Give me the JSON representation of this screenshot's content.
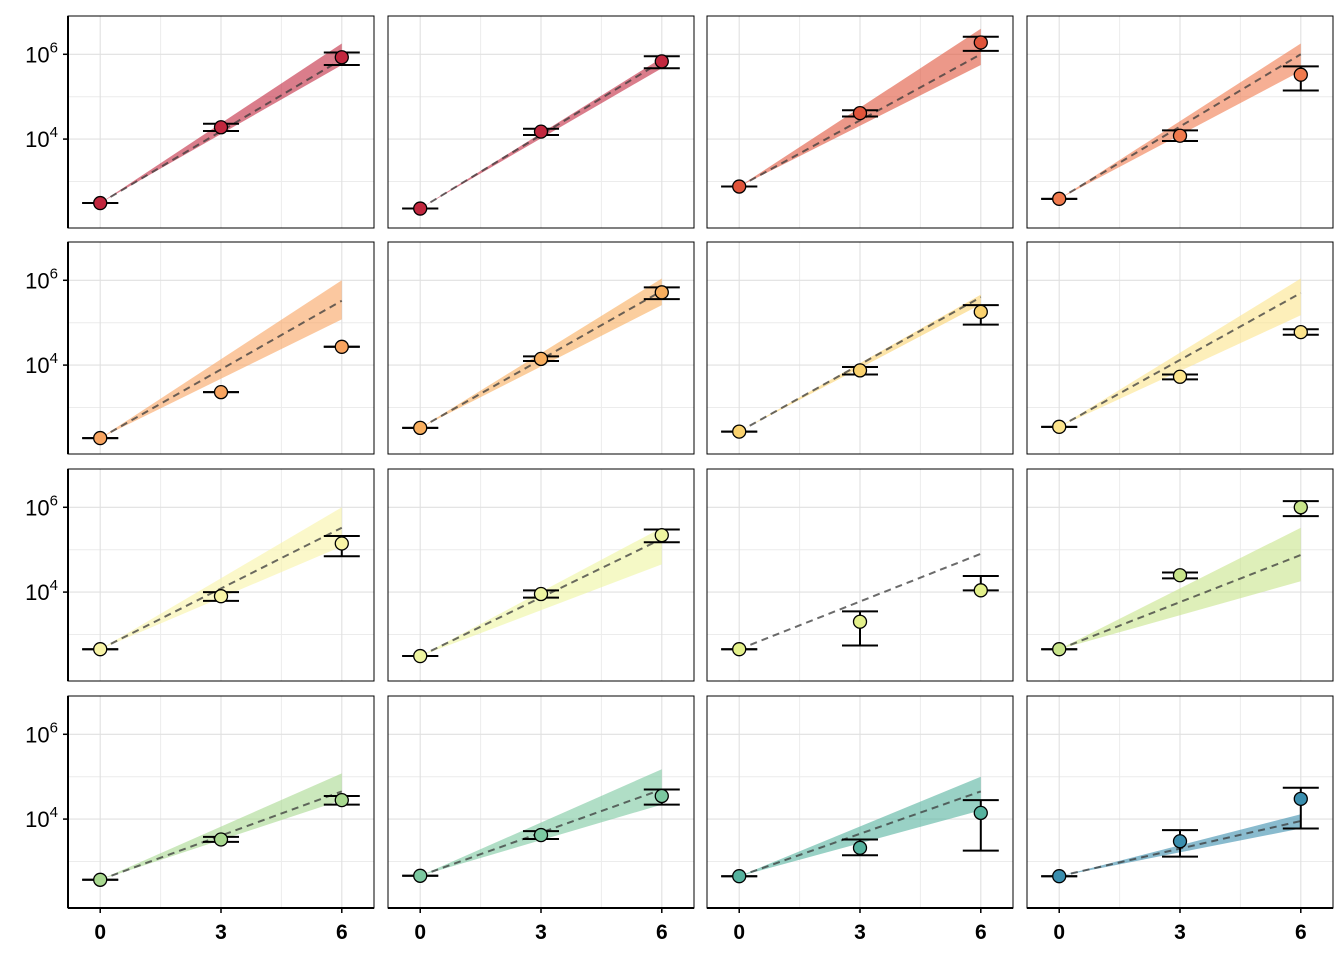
{
  "chart_data": {
    "type": "scatter",
    "title": "",
    "xlabel": "",
    "ylabel": "",
    "layout": {
      "rows": 4,
      "cols": 4
    },
    "x_ticks": [
      0,
      3,
      6
    ],
    "x_tick_labels": [
      "0",
      "3",
      "6"
    ],
    "xlim": [
      -0.8,
      6.8
    ],
    "y_scale": "log10",
    "ylim": [
      80,
      8000000
    ],
    "y_ticks": [
      10000,
      1000000
    ],
    "y_tick_labels": [
      {
        "base": "10",
        "exp": "4"
      },
      {
        "base": "10",
        "exp": "6"
      }
    ],
    "y_minor_gridlines": [
      1000,
      100000
    ],
    "fit_line_style": "dashed",
    "panels": [
      {
        "color": "#C1273E",
        "points": [
          {
            "x": 0,
            "y": 310,
            "lo": 310,
            "hi": 310
          },
          {
            "x": 3,
            "y": 19000,
            "lo": 15500,
            "hi": 23000
          },
          {
            "x": 6,
            "y": 850000,
            "lo": 560000,
            "hi": 1100000
          }
        ],
        "fit": {
          "y0": 310,
          "y6": 760000,
          "band_lo6": 560000,
          "band_hi6": 1800000
        }
      },
      {
        "color": "#C1273E",
        "points": [
          {
            "x": 0,
            "y": 230,
            "lo": 230,
            "hi": 230
          },
          {
            "x": 3,
            "y": 15000,
            "lo": 12500,
            "hi": 17500
          },
          {
            "x": 6,
            "y": 680000,
            "lo": 470000,
            "hi": 900000
          }
        ],
        "fit": {
          "y0": 230,
          "y6": 680000,
          "band_lo6": 470000,
          "band_hi6": 820000
        }
      },
      {
        "color": "#E0543A",
        "points": [
          {
            "x": 0,
            "y": 760,
            "lo": 760,
            "hi": 760
          },
          {
            "x": 3,
            "y": 41000,
            "lo": 34000,
            "hi": 48000
          },
          {
            "x": 6,
            "y": 1900000,
            "lo": 1200000,
            "hi": 2600000
          }
        ],
        "fit": {
          "y0": 760,
          "y6": 1000000,
          "band_lo6": 560000,
          "band_hi6": 4000000
        }
      },
      {
        "color": "#F07A4D",
        "points": [
          {
            "x": 0,
            "y": 390,
            "lo": 390,
            "hi": 390
          },
          {
            "x": 3,
            "y": 12000,
            "lo": 9000,
            "hi": 16000
          },
          {
            "x": 6,
            "y": 330000,
            "lo": 140000,
            "hi": 520000
          }
        ],
        "fit": {
          "y0": 390,
          "y6": 1000000,
          "band_lo6": 400000,
          "band_hi6": 1800000
        }
      },
      {
        "color": "#F8A460",
        "points": [
          {
            "x": 0,
            "y": 190,
            "lo": 190,
            "hi": 190
          },
          {
            "x": 3,
            "y": 2300,
            "lo": 2300,
            "hi": 2300
          },
          {
            "x": 6,
            "y": 27000,
            "lo": 27000,
            "hi": 27000
          }
        ],
        "fit": {
          "y0": 190,
          "y6": 330000,
          "band_lo6": 120000,
          "band_hi6": 1000000
        }
      },
      {
        "color": "#F8AE5E",
        "points": [
          {
            "x": 0,
            "y": 330,
            "lo": 330,
            "hi": 330
          },
          {
            "x": 3,
            "y": 14000,
            "lo": 12500,
            "hi": 16000
          },
          {
            "x": 6,
            "y": 520000,
            "lo": 360000,
            "hi": 680000
          }
        ],
        "fit": {
          "y0": 330,
          "y6": 560000,
          "band_lo6": 260000,
          "band_hi6": 1100000
        }
      },
      {
        "color": "#FAD26E",
        "points": [
          {
            "x": 0,
            "y": 270,
            "lo": 270,
            "hi": 270
          },
          {
            "x": 3,
            "y": 7500,
            "lo": 6000,
            "hi": 9000
          },
          {
            "x": 6,
            "y": 180000,
            "lo": 90000,
            "hi": 260000
          }
        ],
        "fit": {
          "y0": 270,
          "y6": 400000,
          "band_lo6": 270000,
          "band_hi6": 460000
        }
      },
      {
        "color": "#FCE48C",
        "points": [
          {
            "x": 0,
            "y": 350,
            "lo": 350,
            "hi": 350
          },
          {
            "x": 3,
            "y": 5300,
            "lo": 4600,
            "hi": 6000
          },
          {
            "x": 6,
            "y": 60000,
            "lo": 52000,
            "hi": 70000
          }
        ],
        "fit": {
          "y0": 350,
          "y6": 500000,
          "band_lo6": 150000,
          "band_hi6": 1100000
        }
      },
      {
        "color": "#F8F4A6",
        "points": [
          {
            "x": 0,
            "y": 450,
            "lo": 450,
            "hi": 450
          },
          {
            "x": 3,
            "y": 8000,
            "lo": 6200,
            "hi": 10000
          },
          {
            "x": 6,
            "y": 140000,
            "lo": 70000,
            "hi": 210000
          }
        ],
        "fit": {
          "y0": 450,
          "y6": 330000,
          "band_lo6": 120000,
          "band_hi6": 1000000
        }
      },
      {
        "color": "#EEF5A0",
        "points": [
          {
            "x": 0,
            "y": 310,
            "lo": 310,
            "hi": 310
          },
          {
            "x": 3,
            "y": 9000,
            "lo": 7400,
            "hi": 11000
          },
          {
            "x": 6,
            "y": 220000,
            "lo": 150000,
            "hi": 300000
          }
        ],
        "fit": {
          "y0": 310,
          "y6": 180000,
          "band_lo6": 45000,
          "band_hi6": 330000
        }
      },
      {
        "color": "#E3F08A",
        "points": [
          {
            "x": 0,
            "y": 450,
            "lo": 450,
            "hi": 450
          },
          {
            "x": 3,
            "y": 2000,
            "lo": 550,
            "hi": 3500
          },
          {
            "x": 6,
            "y": 11000,
            "lo": 11000,
            "hi": 24000
          }
        ],
        "fit": {
          "y0": 450,
          "y6": 80000,
          "band_lo6": 80000,
          "band_hi6": 80000
        }
      },
      {
        "color": "#C8E48A",
        "points": [
          {
            "x": 0,
            "y": 450,
            "lo": 450,
            "hi": 450
          },
          {
            "x": 3,
            "y": 25000,
            "lo": 21000,
            "hi": 29000
          },
          {
            "x": 6,
            "y": 1000000,
            "lo": 620000,
            "hi": 1400000
          }
        ],
        "fit": {
          "y0": 450,
          "y6": 75000,
          "band_lo6": 18000,
          "band_hi6": 330000
        }
      },
      {
        "color": "#A8D88F",
        "points": [
          {
            "x": 0,
            "y": 370,
            "lo": 370,
            "hi": 370
          },
          {
            "x": 3,
            "y": 3300,
            "lo": 2900,
            "hi": 3800
          },
          {
            "x": 6,
            "y": 28000,
            "lo": 22000,
            "hi": 35000
          }
        ],
        "fit": {
          "y0": 370,
          "y6": 45000,
          "band_lo6": 28000,
          "band_hi6": 120000
        }
      },
      {
        "color": "#7BC8A0",
        "points": [
          {
            "x": 0,
            "y": 460,
            "lo": 460,
            "hi": 460
          },
          {
            "x": 3,
            "y": 4200,
            "lo": 3400,
            "hi": 5200
          },
          {
            "x": 6,
            "y": 35000,
            "lo": 22000,
            "hi": 50000
          }
        ],
        "fit": {
          "y0": 460,
          "y6": 50000,
          "band_lo6": 22000,
          "band_hi6": 150000
        }
      },
      {
        "color": "#55B29E",
        "points": [
          {
            "x": 0,
            "y": 450,
            "lo": 450,
            "hi": 450
          },
          {
            "x": 3,
            "y": 2100,
            "lo": 1400,
            "hi": 3300
          },
          {
            "x": 6,
            "y": 14000,
            "lo": 1800,
            "hi": 28000
          }
        ],
        "fit": {
          "y0": 450,
          "y6": 45000,
          "band_lo6": 16000,
          "band_hi6": 100000
        }
      },
      {
        "color": "#3A8EAE",
        "points": [
          {
            "x": 0,
            "y": 450,
            "lo": 450,
            "hi": 450
          },
          {
            "x": 3,
            "y": 3000,
            "lo": 1300,
            "hi": 5500
          },
          {
            "x": 6,
            "y": 30000,
            "lo": 6000,
            "hi": 55000
          }
        ],
        "fit": {
          "y0": 450,
          "y6": 9000,
          "band_lo6": 6000,
          "band_hi6": 13000
        }
      }
    ]
  }
}
